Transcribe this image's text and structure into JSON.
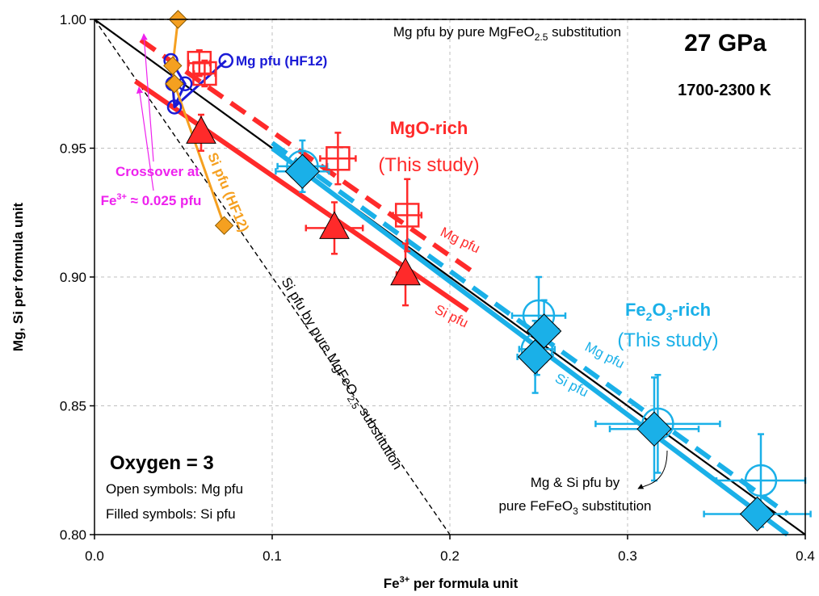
{
  "chart_data": {
    "type": "scatter",
    "xlabel": "Fe³⁺ per formula unit",
    "ylabel": "Mg, Si per formula unit",
    "xlim": [
      0,
      0.4
    ],
    "ylim": [
      0.8,
      1.0
    ],
    "x_ticks": [
      "0.0",
      "0.1",
      "0.2",
      "0.3",
      "0.4"
    ],
    "y_ticks": [
      "0.80",
      "0.85",
      "0.90",
      "0.95",
      "1.00"
    ],
    "grid": true,
    "texts": {
      "pressure": "27 GPa",
      "temperature": "1700-2300 K",
      "oxygen": "Oxygen = 3",
      "open_symbols": "Open symbols: Mg pfu",
      "filled_symbols": "Filled symbols: Si pfu",
      "mgo_rich": "MgO-rich",
      "mgo_rich_sub": "(This study)",
      "fe2o3_rich_a": "Fe",
      "fe2o3_rich_sub2": "2",
      "fe2o3_rich_b": "O",
      "fe2o3_rich_sub3": "3",
      "fe2o3_rich_c": "-rich",
      "fe2o3_rich_sub": "(This study)",
      "mg_pfu_red": "Mg pfu",
      "si_pfu_red": "Si pfu",
      "mg_pfu_blue": "Mg pfu",
      "si_pfu_blue": "Si pfu",
      "mg_hf12": "Mg pfu (HF12)",
      "si_hf12": "Si pfu (HF12)",
      "crossover_1": "Crossover at",
      "crossover_2a": "Fe",
      "crossover_2sup": "3+",
      "crossover_2b": " ≈ 0.025 pfu",
      "mgfeo25_top_a": "Mg pfu by pure MgFeO",
      "mgfeo25_top_sub": "2.5",
      "mgfeo25_top_b": " substitution",
      "si_mgfeo25_a": "Si pfu by pure MgFeO",
      "si_mgfeo25_sub": "2.5",
      "si_mgfeo25_b": " substitution",
      "fefeo3_1": "Mg & Si pfu by",
      "fefeo3_2a": "pure FeFeO",
      "fefeo3_2sub": "3",
      "fefeo3_2b": " substitution"
    },
    "colors": {
      "red": "#ff2a2a",
      "sky": "#1ab0e8",
      "orange": "#f5a020",
      "blue": "#1a1ad6",
      "magenta": "#ee22ee",
      "black": "#000000",
      "grid": "#bfbfbf"
    },
    "reference_lines": [
      {
        "label": "Mg pfu by pure MgFeO2.5 substitution",
        "x": [
          0,
          0.4
        ],
        "y": [
          1.0,
          1.0
        ],
        "style": "dashed"
      },
      {
        "label": "Si pfu by pure MgFeO2.5 substitution",
        "x": [
          0,
          0.2
        ],
        "y": [
          1.0,
          0.8
        ],
        "style": "dashed"
      },
      {
        "label": "Mg & Si pfu by pure FeFeO3 substitution",
        "x": [
          0,
          0.4
        ],
        "y": [
          1.0,
          0.8
        ],
        "style": "solid"
      }
    ],
    "series": [
      {
        "name": "MgO-rich Mg pfu",
        "marker": "open-square",
        "color": "red",
        "points": [
          {
            "x": 0.059,
            "y": 0.983,
            "xerr": 0.006,
            "yerr": 0.005
          },
          {
            "x": 0.062,
            "y": 0.979,
            "xerr": 0.006,
            "yerr": 0.005
          },
          {
            "x": 0.137,
            "y": 0.946,
            "xerr": 0.01,
            "yerr": 0.01
          },
          {
            "x": 0.176,
            "y": 0.924,
            "xerr": 0.008,
            "yerr": 0.014
          }
        ],
        "trend": {
          "x": [
            0.026,
            0.215
          ],
          "y": [
            0.992,
            0.901
          ]
        }
      },
      {
        "name": "MgO-rich Si pfu",
        "marker": "filled-triangle",
        "color": "red",
        "points": [
          {
            "x": 0.06,
            "y": 0.956,
            "xerr": 0.004,
            "yerr": 0.007
          },
          {
            "x": 0.135,
            "y": 0.919,
            "xerr": 0.016,
            "yerr": 0.01
          },
          {
            "x": 0.175,
            "y": 0.901,
            "xerr": 0.005,
            "yerr": 0.012
          }
        ],
        "trend": {
          "x": [
            0.023,
            0.21
          ],
          "y": [
            0.976,
            0.887
          ]
        }
      },
      {
        "name": "Fe2O3-rich Mg pfu",
        "marker": "open-circle",
        "color": "sky",
        "points": [
          {
            "x": 0.117,
            "y": 0.943,
            "xerr": 0.014,
            "yerr": 0.01
          },
          {
            "x": 0.25,
            "y": 0.885,
            "xerr": 0.015,
            "yerr": 0.015
          },
          {
            "x": 0.249,
            "y": 0.872,
            "xerr": 0.01,
            "yerr": 0.01
          },
          {
            "x": 0.317,
            "y": 0.843,
            "xerr": 0.035,
            "yerr": 0.019
          },
          {
            "x": 0.375,
            "y": 0.821,
            "xerr": 0.025,
            "yerr": 0.018
          }
        ],
        "trend": {
          "x": [
            0.1,
            0.39
          ],
          "y": [
            0.952,
            0.808
          ]
        }
      },
      {
        "name": "Fe2O3-rich Si pfu",
        "marker": "filled-diamond",
        "color": "sky",
        "points": [
          {
            "x": 0.117,
            "y": 0.941,
            "xerr": 0.015,
            "yerr": 0.008
          },
          {
            "x": 0.253,
            "y": 0.879,
            "xerr": 0.008,
            "yerr": 0.012
          },
          {
            "x": 0.248,
            "y": 0.869,
            "xerr": 0.01,
            "yerr": 0.014
          },
          {
            "x": 0.315,
            "y": 0.841,
            "xerr": 0.025,
            "yerr": 0.02
          },
          {
            "x": 0.373,
            "y": 0.808,
            "xerr": 0.03,
            "yerr": 0.0
          }
        ],
        "trend": {
          "x": [
            0.1,
            0.39
          ],
          "y": [
            0.95,
            0.8
          ]
        }
      },
      {
        "name": "Mg pfu (HF12)",
        "marker": "open-circle-small",
        "color": "blue",
        "points": [
          {
            "x": 0.043,
            "y": 0.984
          },
          {
            "x": 0.044,
            "y": 0.975
          },
          {
            "x": 0.051,
            "y": 0.975
          },
          {
            "x": 0.045,
            "y": 0.966
          },
          {
            "x": 0.074,
            "y": 0.984
          }
        ],
        "path": {
          "x": [
            0.074,
            0.045,
            0.051,
            0.043,
            0.044,
            0.045
          ],
          "y": [
            0.984,
            0.966,
            0.975,
            0.984,
            0.975,
            0.966
          ]
        }
      },
      {
        "name": "Si pfu (HF12)",
        "marker": "filled-diamond-small",
        "color": "orange",
        "points": [
          {
            "x": 0.047,
            "y": 1.0
          },
          {
            "x": 0.044,
            "y": 0.982
          },
          {
            "x": 0.045,
            "y": 0.975
          },
          {
            "x": 0.073,
            "y": 0.92
          }
        ],
        "path": {
          "x": [
            0.047,
            0.044,
            0.045,
            0.073
          ],
          "y": [
            1.0,
            0.982,
            0.975,
            0.92
          ]
        }
      }
    ]
  }
}
